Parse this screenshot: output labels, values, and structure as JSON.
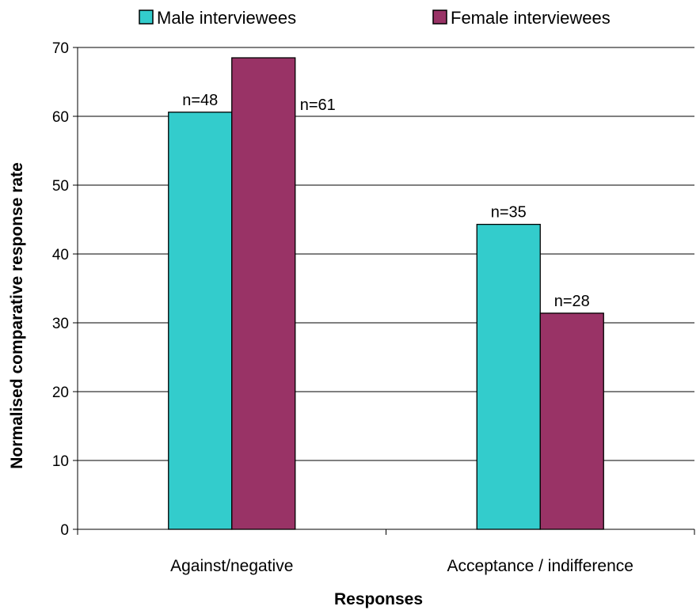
{
  "chart_data": {
    "type": "bar",
    "categories": [
      "Against/negative",
      "Acceptance / indifference"
    ],
    "series": [
      {
        "name": "Male interviewees",
        "values": [
          60.6,
          44.3
        ],
        "labels": [
          "n=48",
          "n=35"
        ],
        "color": "#33CCCC"
      },
      {
        "name": "Female interviewees",
        "values": [
          68.5,
          31.4
        ],
        "labels": [
          "n=61",
          "n=28"
        ],
        "color": "#993366"
      }
    ],
    "xlabel": "Responses",
    "ylabel": "Normalised comparative response rate",
    "ylim": [
      0,
      70
    ],
    "yticks": [
      0,
      10,
      20,
      30,
      40,
      50,
      60,
      70
    ],
    "grid": true,
    "legend_position": "top"
  }
}
